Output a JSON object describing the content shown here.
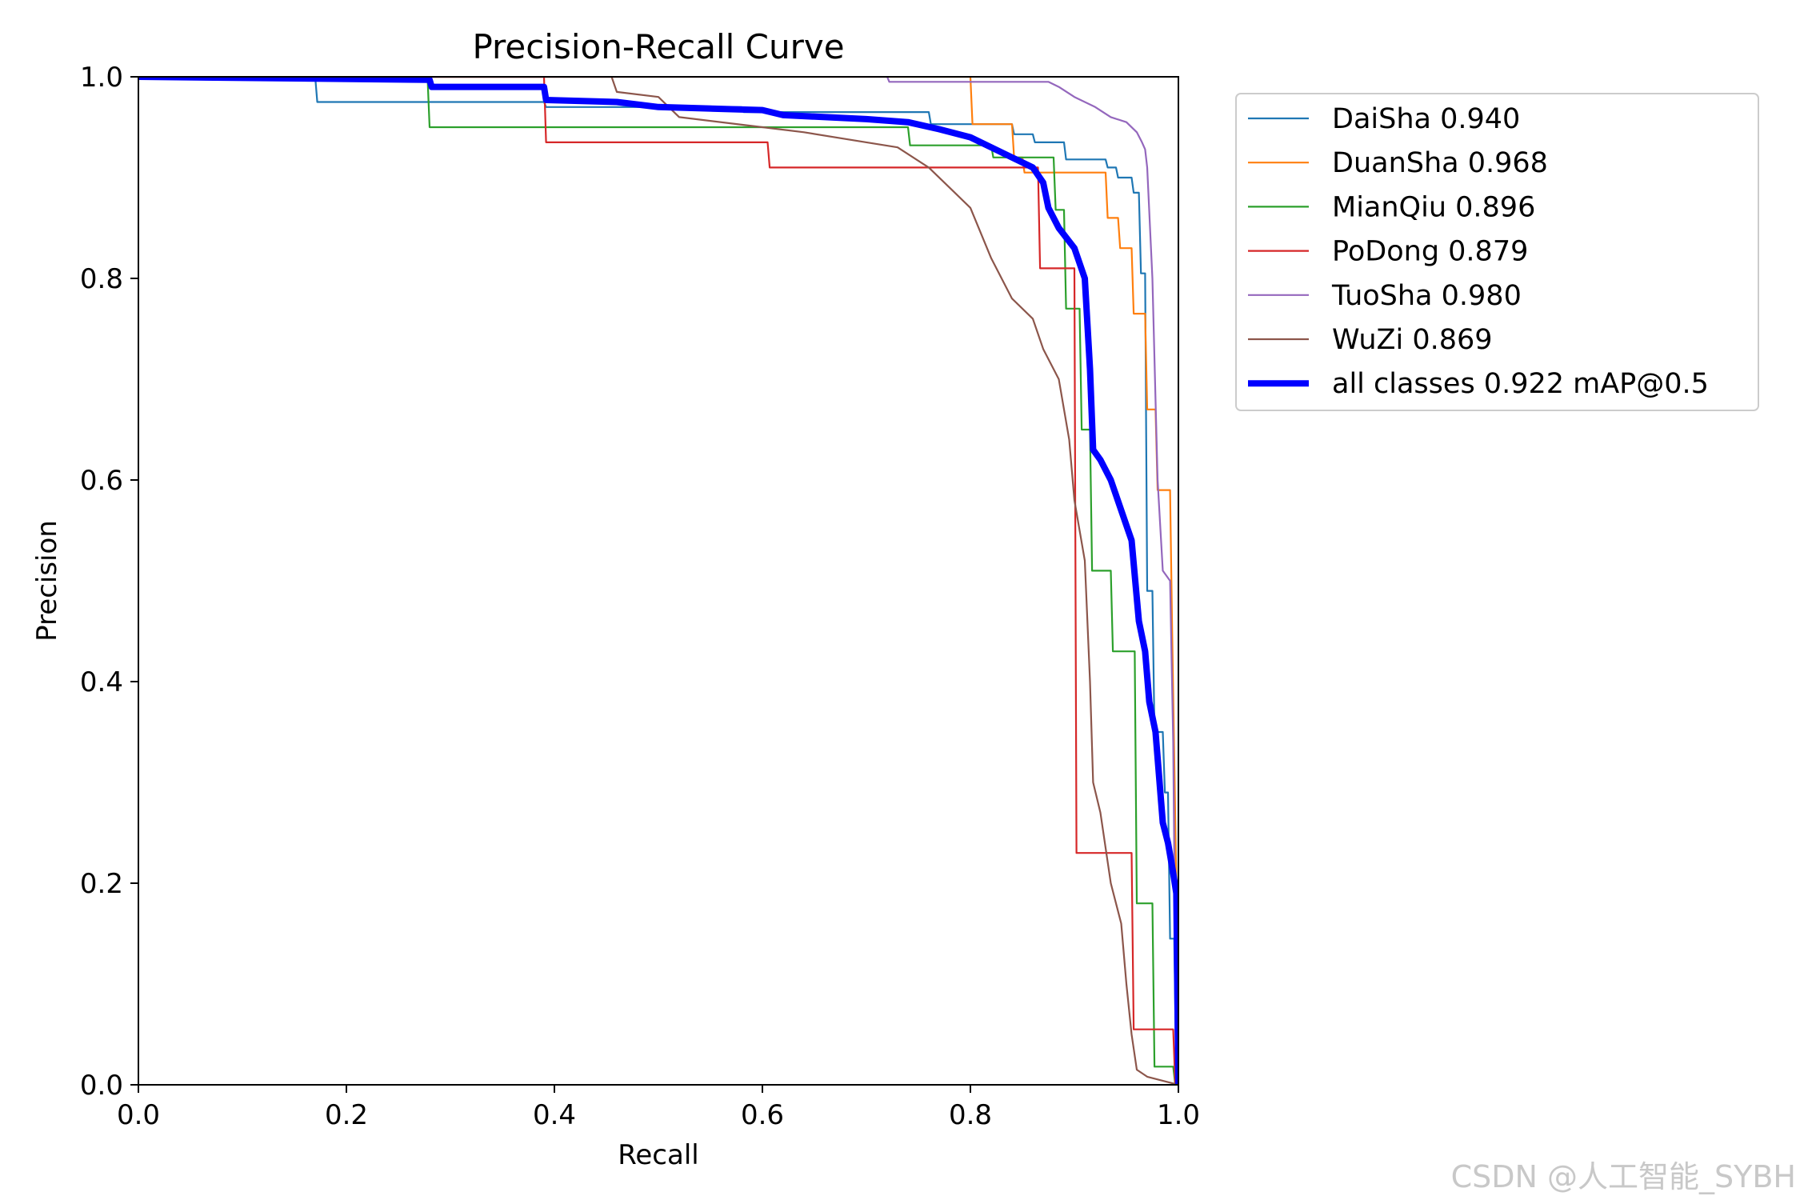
{
  "chart_data": {
    "type": "line",
    "title": "Precision-Recall Curve",
    "xlabel": "Recall",
    "ylabel": "Precision",
    "xlim": [
      0,
      1
    ],
    "ylim": [
      0,
      1
    ],
    "xticks": [
      "0.0",
      "0.2",
      "0.4",
      "0.6",
      "0.8",
      "1.0"
    ],
    "yticks": [
      "0.0",
      "0.2",
      "0.4",
      "0.6",
      "0.8",
      "1.0"
    ],
    "grid": false,
    "legend_position": "outside-top-right",
    "series": [
      {
        "name": "DaiSha 0.940",
        "color": "#1f77b4",
        "style": "thin",
        "points": [
          [
            0,
            1.0
          ],
          [
            0.17,
            1.0
          ],
          [
            0.172,
            0.975
          ],
          [
            0.39,
            0.975
          ],
          [
            0.392,
            0.97
          ],
          [
            0.58,
            0.97
          ],
          [
            0.582,
            0.965
          ],
          [
            0.76,
            0.965
          ],
          [
            0.762,
            0.953
          ],
          [
            0.84,
            0.953
          ],
          [
            0.842,
            0.943
          ],
          [
            0.86,
            0.943
          ],
          [
            0.862,
            0.935
          ],
          [
            0.89,
            0.935
          ],
          [
            0.892,
            0.918
          ],
          [
            0.93,
            0.918
          ],
          [
            0.932,
            0.91
          ],
          [
            0.94,
            0.91
          ],
          [
            0.942,
            0.9
          ],
          [
            0.955,
            0.9
          ],
          [
            0.957,
            0.885
          ],
          [
            0.962,
            0.885
          ],
          [
            0.964,
            0.805
          ],
          [
            0.968,
            0.805
          ],
          [
            0.97,
            0.49
          ],
          [
            0.975,
            0.49
          ],
          [
            0.977,
            0.35
          ],
          [
            0.985,
            0.35
          ],
          [
            0.987,
            0.29
          ],
          [
            0.99,
            0.29
          ],
          [
            0.992,
            0.145
          ],
          [
            0.996,
            0.145
          ],
          [
            0.998,
            0.0
          ]
        ]
      },
      {
        "name": "DuanSha 0.968",
        "color": "#ff7f0e",
        "style": "thin",
        "points": [
          [
            0,
            1.0
          ],
          [
            0.8,
            1.0
          ],
          [
            0.802,
            0.953
          ],
          [
            0.84,
            0.953
          ],
          [
            0.842,
            0.92
          ],
          [
            0.85,
            0.92
          ],
          [
            0.852,
            0.905
          ],
          [
            0.93,
            0.905
          ],
          [
            0.932,
            0.86
          ],
          [
            0.942,
            0.86
          ],
          [
            0.944,
            0.83
          ],
          [
            0.955,
            0.83
          ],
          [
            0.957,
            0.765
          ],
          [
            0.968,
            0.765
          ],
          [
            0.97,
            0.67
          ],
          [
            0.978,
            0.67
          ],
          [
            0.98,
            0.59
          ],
          [
            0.992,
            0.59
          ],
          [
            0.994,
            0.45
          ],
          [
            0.998,
            0.2
          ],
          [
            1.0,
            0.0
          ]
        ]
      },
      {
        "name": "MianQiu 0.896",
        "color": "#2ca02c",
        "style": "thin",
        "points": [
          [
            0,
            1.0
          ],
          [
            0.278,
            1.0
          ],
          [
            0.28,
            0.95
          ],
          [
            0.74,
            0.95
          ],
          [
            0.742,
            0.932
          ],
          [
            0.82,
            0.932
          ],
          [
            0.822,
            0.92
          ],
          [
            0.88,
            0.92
          ],
          [
            0.882,
            0.868
          ],
          [
            0.89,
            0.868
          ],
          [
            0.892,
            0.77
          ],
          [
            0.905,
            0.77
          ],
          [
            0.907,
            0.65
          ],
          [
            0.915,
            0.65
          ],
          [
            0.917,
            0.51
          ],
          [
            0.935,
            0.51
          ],
          [
            0.937,
            0.43
          ],
          [
            0.958,
            0.43
          ],
          [
            0.96,
            0.18
          ],
          [
            0.975,
            0.18
          ],
          [
            0.977,
            0.018
          ],
          [
            0.995,
            0.018
          ],
          [
            0.997,
            0.0
          ]
        ]
      },
      {
        "name": "PoDong 0.879",
        "color": "#d62728",
        "style": "thin",
        "points": [
          [
            0,
            1.0
          ],
          [
            0.39,
            1.0
          ],
          [
            0.392,
            0.935
          ],
          [
            0.605,
            0.935
          ],
          [
            0.607,
            0.91
          ],
          [
            0.865,
            0.91
          ],
          [
            0.867,
            0.81
          ],
          [
            0.9,
            0.81
          ],
          [
            0.902,
            0.23
          ],
          [
            0.955,
            0.23
          ],
          [
            0.957,
            0.055
          ],
          [
            0.995,
            0.055
          ],
          [
            0.997,
            0.0
          ]
        ]
      },
      {
        "name": "TuoSha 0.980",
        "color": "#9467bd",
        "style": "thin",
        "points": [
          [
            0,
            1.0
          ],
          [
            0.72,
            1.0
          ],
          [
            0.722,
            0.995
          ],
          [
            0.875,
            0.995
          ],
          [
            0.885,
            0.99
          ],
          [
            0.9,
            0.98
          ],
          [
            0.92,
            0.97
          ],
          [
            0.935,
            0.96
          ],
          [
            0.95,
            0.955
          ],
          [
            0.96,
            0.945
          ],
          [
            0.965,
            0.935
          ],
          [
            0.968,
            0.928
          ],
          [
            0.97,
            0.91
          ],
          [
            0.975,
            0.8
          ],
          [
            0.98,
            0.6
          ],
          [
            0.985,
            0.51
          ],
          [
            0.992,
            0.5
          ],
          [
            0.995,
            0.34
          ],
          [
            0.997,
            0.12
          ],
          [
            1.0,
            0.0
          ]
        ]
      },
      {
        "name": "WuZi 0.869",
        "color": "#8c564b",
        "style": "thin",
        "points": [
          [
            0,
            1.0
          ],
          [
            0.455,
            1.0
          ],
          [
            0.46,
            0.985
          ],
          [
            0.5,
            0.98
          ],
          [
            0.52,
            0.96
          ],
          [
            0.6,
            0.95
          ],
          [
            0.64,
            0.945
          ],
          [
            0.7,
            0.935
          ],
          [
            0.73,
            0.93
          ],
          [
            0.76,
            0.91
          ],
          [
            0.78,
            0.89
          ],
          [
            0.8,
            0.87
          ],
          [
            0.82,
            0.82
          ],
          [
            0.84,
            0.78
          ],
          [
            0.86,
            0.76
          ],
          [
            0.87,
            0.73
          ],
          [
            0.885,
            0.7
          ],
          [
            0.895,
            0.64
          ],
          [
            0.9,
            0.58
          ],
          [
            0.905,
            0.55
          ],
          [
            0.91,
            0.52
          ],
          [
            0.915,
            0.4
          ],
          [
            0.918,
            0.3
          ],
          [
            0.925,
            0.27
          ],
          [
            0.935,
            0.2
          ],
          [
            0.945,
            0.16
          ],
          [
            0.95,
            0.1
          ],
          [
            0.955,
            0.05
          ],
          [
            0.96,
            0.015
          ],
          [
            0.97,
            0.008
          ],
          [
            1.0,
            0.0
          ]
        ]
      },
      {
        "name": "all classes 0.922 mAP@0.5",
        "color": "#0000ff",
        "style": "thick",
        "points": [
          [
            0,
            1.0
          ],
          [
            0.28,
            0.997
          ],
          [
            0.282,
            0.99
          ],
          [
            0.39,
            0.99
          ],
          [
            0.392,
            0.977
          ],
          [
            0.46,
            0.975
          ],
          [
            0.5,
            0.97
          ],
          [
            0.6,
            0.967
          ],
          [
            0.62,
            0.962
          ],
          [
            0.7,
            0.958
          ],
          [
            0.74,
            0.955
          ],
          [
            0.77,
            0.948
          ],
          [
            0.8,
            0.94
          ],
          [
            0.82,
            0.93
          ],
          [
            0.84,
            0.92
          ],
          [
            0.86,
            0.91
          ],
          [
            0.87,
            0.895
          ],
          [
            0.875,
            0.87
          ],
          [
            0.885,
            0.85
          ],
          [
            0.9,
            0.83
          ],
          [
            0.91,
            0.8
          ],
          [
            0.915,
            0.71
          ],
          [
            0.918,
            0.63
          ],
          [
            0.925,
            0.62
          ],
          [
            0.935,
            0.6
          ],
          [
            0.945,
            0.57
          ],
          [
            0.955,
            0.54
          ],
          [
            0.962,
            0.46
          ],
          [
            0.968,
            0.43
          ],
          [
            0.972,
            0.38
          ],
          [
            0.978,
            0.35
          ],
          [
            0.985,
            0.26
          ],
          [
            0.99,
            0.24
          ],
          [
            0.995,
            0.21
          ],
          [
            0.998,
            0.19
          ],
          [
            1.0,
            0.0
          ]
        ]
      }
    ]
  },
  "watermark": "CSDN @人工智能_SYBH"
}
